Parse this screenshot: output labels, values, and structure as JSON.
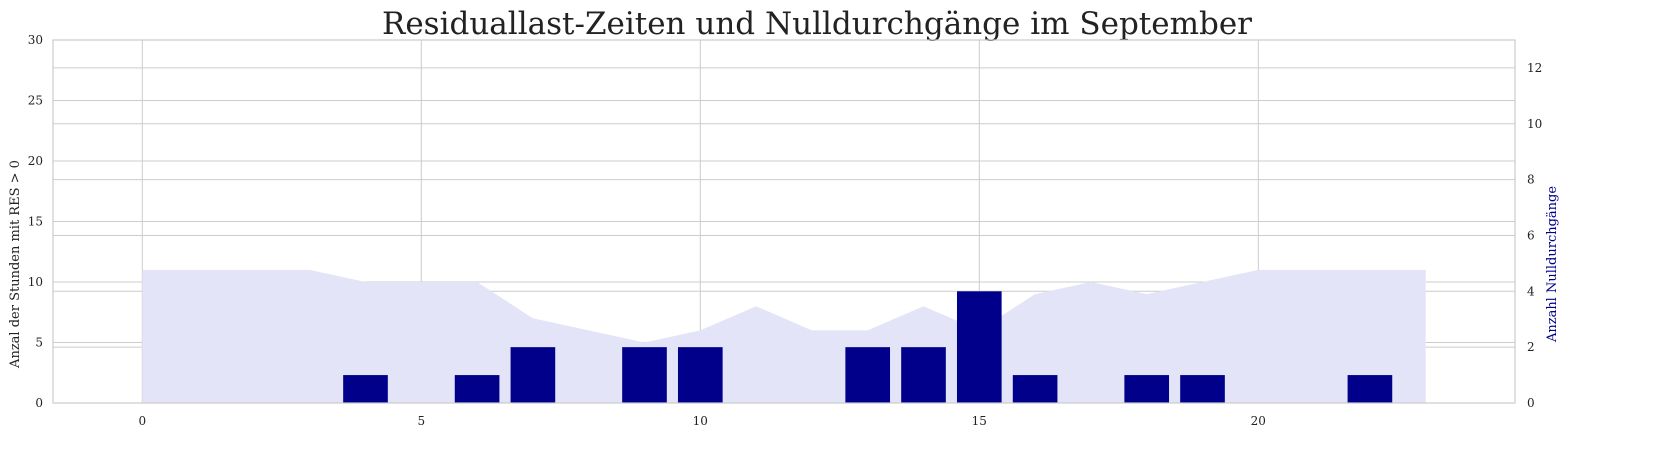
{
  "chart_data": {
    "type": "bar",
    "title": "Residuallast-Zeiten und Nulldurchgänge im September",
    "xlabel": "",
    "ylabel": "Anzal der Stunden mit RES > 0",
    "y2label": "Anzahl Nulldurchgänge",
    "xlim": [
      -1.6,
      24.6
    ],
    "ylim": [
      0,
      30
    ],
    "y2lim": [
      0,
      13
    ],
    "xticks": [
      0,
      5,
      10,
      15,
      20
    ],
    "yticks": [
      0,
      5,
      10,
      15,
      20,
      25,
      30
    ],
    "y2ticks": [
      0,
      2,
      4,
      6,
      8,
      10,
      12
    ],
    "grid": true,
    "area": {
      "name": "",
      "axis": "left",
      "color": "#e3e4f7",
      "x": [
        0,
        1,
        2,
        3,
        4,
        5,
        6,
        7,
        8,
        9,
        10,
        11,
        12,
        13,
        14,
        15,
        16,
        17,
        18,
        19,
        20,
        21,
        22,
        23
      ],
      "y": [
        11,
        11,
        11,
        11,
        10,
        10,
        10,
        7,
        6,
        5,
        6,
        8,
        6,
        6,
        8,
        6,
        9,
        10,
        9,
        10,
        11,
        11,
        11,
        11
      ]
    },
    "bars": {
      "name": "",
      "axis": "right",
      "color": "#00008b",
      "x": [
        0,
        1,
        2,
        3,
        4,
        5,
        6,
        7,
        8,
        9,
        10,
        11,
        12,
        13,
        14,
        15,
        16,
        17,
        18,
        19,
        20,
        21,
        22,
        23
      ],
      "values": [
        0,
        0,
        0,
        0,
        1,
        0,
        1,
        2,
        0,
        2,
        2,
        0,
        0,
        2,
        2,
        4,
        1,
        0,
        1,
        1,
        0,
        0,
        1,
        0
      ]
    }
  }
}
